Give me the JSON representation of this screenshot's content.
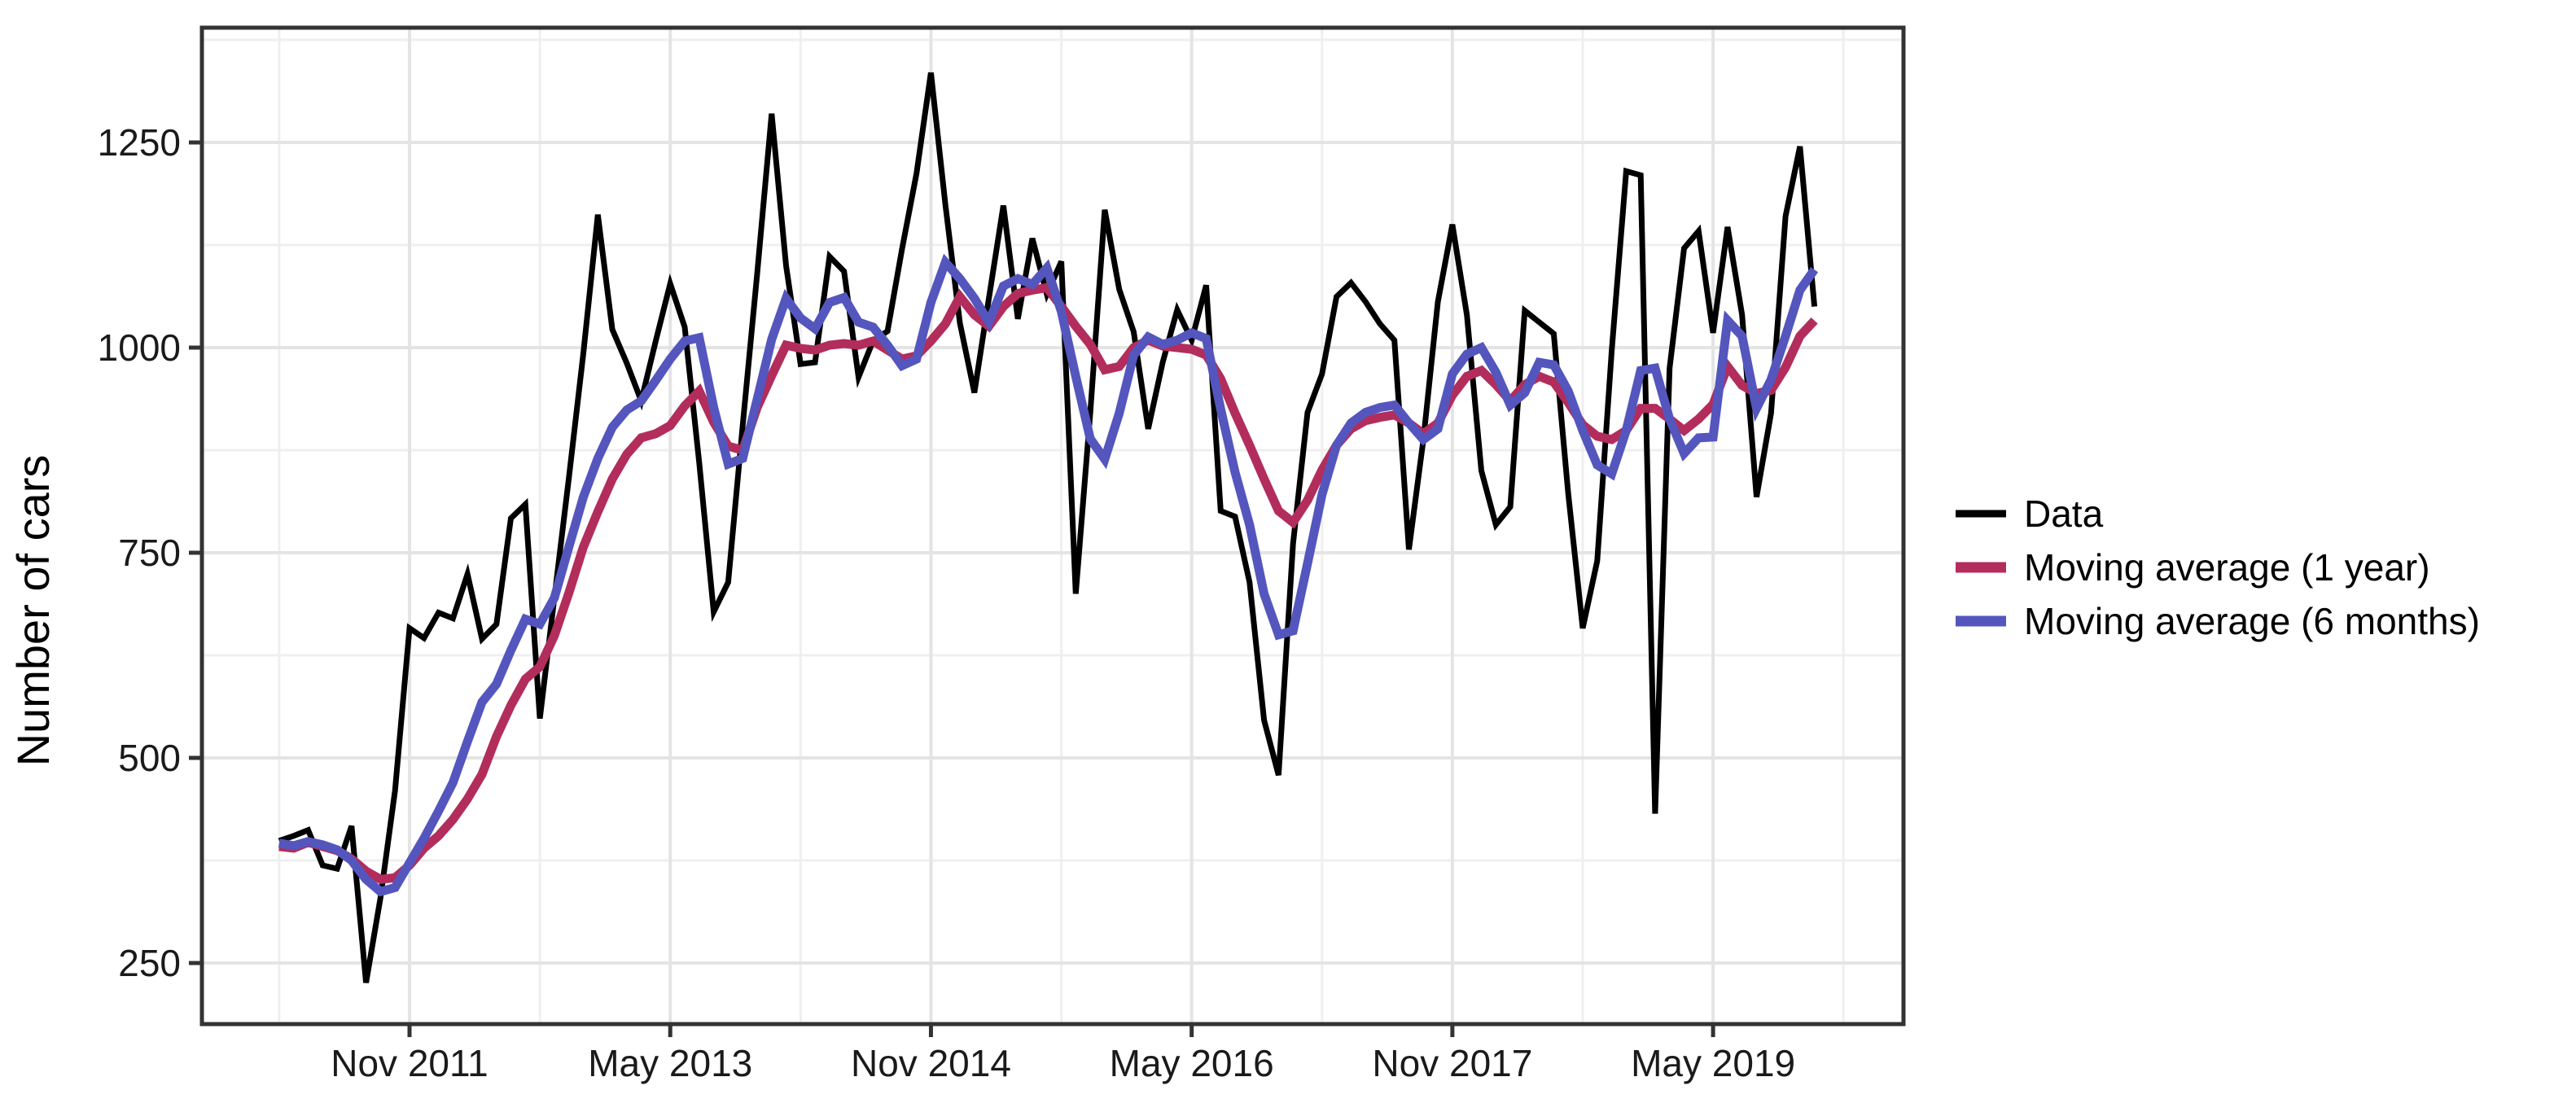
{
  "figure": {
    "kind": "time-series line chart",
    "background_color": "#ffffff",
    "panel_border_color": "#333333",
    "grid_major_color": "#e4e4e4",
    "grid_minor_color": "#efefef",
    "tick_color": "#333333"
  },
  "y_axis": {
    "title": "Number of cars",
    "tick_labels": [
      "1250",
      "1000",
      "750",
      "500",
      "250"
    ],
    "tick_values": [
      1250,
      1000,
      750,
      500,
      250
    ]
  },
  "x_axis": {
    "tick_labels": [
      "Nov 2011",
      "May 2013",
      "Nov 2014",
      "May 2016",
      "Nov 2017",
      "May 2019"
    ],
    "tick_month_indices": [
      9,
      27,
      45,
      63,
      81,
      99
    ],
    "minor_month_indices": [
      0,
      18,
      36,
      54,
      72,
      90,
      108
    ]
  },
  "legend": {
    "entries": [
      {
        "label": "Data",
        "color": "#000000",
        "key_thickness": 9
      },
      {
        "label": "Moving average (1 year)",
        "color": "#B22D5C",
        "key_thickness": 13
      },
      {
        "label": "Moving average (6 months)",
        "color": "#5456BE",
        "key_thickness": 13
      }
    ]
  },
  "chart_data": {
    "type": "line",
    "title": "",
    "xlabel": "",
    "ylabel": "Number of cars",
    "x_start": "Feb 2011",
    "x_end": "Dec 2019",
    "x_frequency": "monthly",
    "n_points": 107,
    "ylim": [
      176,
      1383
    ],
    "y_major_gridlines": [
      250,
      500,
      750,
      1000,
      1250
    ],
    "y_minor_gridlines": [
      375,
      625,
      875,
      1125,
      1375
    ],
    "grid": true,
    "legend_position": "right",
    "series": [
      {
        "name": "Data",
        "color": "#000000",
        "line_width": 7,
        "values": [
          399,
          405,
          412,
          369,
          365,
          417,
          226,
          330,
          460,
          658,
          646,
          677,
          670,
          724,
          645,
          663,
          792,
          809,
          548,
          695,
          841,
          993,
          1162,
          1022,
          981,
          935,
          1008,
          1078,
          1025,
          860,
          678,
          714,
          905,
          1090,
          1285,
          1100,
          980,
          982,
          1111,
          1093,
          964,
          1008,
          1020,
          1120,
          1212,
          1335,
          1174,
          1030,
          945,
          1060,
          1173,
          1035,
          1133,
          1065,
          1105,
          700,
          920,
          1168,
          1071,
          1019,
          901,
          982,
          1046,
          1009,
          1076,
          801,
          794,
          714,
          546,
          479,
          761,
          921,
          968,
          1062,
          1079,
          1056,
          1029,
          1009,
          754,
          888,
          1056,
          1150,
          1040,
          850,
          784,
          806,
          1045,
          1031,
          1017,
          822,
          658,
          740,
          996,
          1215,
          1210,
          432,
          975,
          1121,
          1142,
          1018,
          1147,
          1040,
          818,
          920,
          1160,
          1245,
          1050
        ]
      },
      {
        "name": "Moving average (1 year)",
        "color": "#B22D5C",
        "line_width": 11,
        "values": [
          392,
          390,
          397,
          392,
          387,
          377,
          362,
          352,
          354,
          369,
          390,
          405,
          425,
          450,
          480,
          526,
          564,
          596,
          611,
          649,
          701,
          757,
          800,
          840,
          870,
          890,
          895,
          905,
          929,
          947,
          909,
          880,
          875,
          927,
          966,
          1003,
          999,
          997,
          1003,
          1005,
          1003,
          1008,
          997,
          986,
          990,
          1008,
          1029,
          1062,
          1040,
          1026,
          1050,
          1066,
          1070,
          1073,
          1050,
          1026,
          1004,
          973,
          977,
          1000,
          1009,
          1002,
          1000,
          998,
          991,
          962,
          920,
          881,
          840,
          801,
          787,
          814,
          851,
          881,
          901,
          911,
          915,
          918,
          908,
          895,
          908,
          942,
          965,
          972,
          955,
          935,
          955,
          965,
          958,
          933,
          906,
          892,
          888,
          899,
          926,
          926,
          913,
          899,
          913,
          931,
          977,
          954,
          944,
          948,
          976,
          1014,
          1033
        ]
      },
      {
        "name": "Moving average (6 months)",
        "color": "#5456BE",
        "line_width": 11,
        "values": [
          396,
          393,
          398,
          394,
          388,
          375,
          352,
          337,
          342,
          372,
          402,
          435,
          470,
          520,
          568,
          590,
          631,
          669,
          663,
          695,
          757,
          818,
          865,
          903,
          924,
          935,
          960,
          986,
          1008,
          1012,
          927,
          858,
          865,
          937,
          1010,
          1060,
          1036,
          1023,
          1055,
          1061,
          1031,
          1025,
          1003,
          978,
          986,
          1055,
          1104,
          1084,
          1060,
          1031,
          1075,
          1084,
          1077,
          1097,
          1044,
          965,
          889,
          864,
          920,
          991,
          1013,
          1004,
          1009,
          1018,
          1011,
          925,
          848,
          784,
          700,
          650,
          655,
          737,
          821,
          881,
          908,
          921,
          927,
          930,
          908,
          888,
          901,
          968,
          992,
          1000,
          970,
          930,
          945,
          982,
          979,
          947,
          899,
          857,
          846,
          899,
          972,
          975,
          913,
          871,
          890,
          891,
          1033,
          1014,
          926,
          961,
          1014,
          1070,
          1095
        ]
      }
    ]
  }
}
